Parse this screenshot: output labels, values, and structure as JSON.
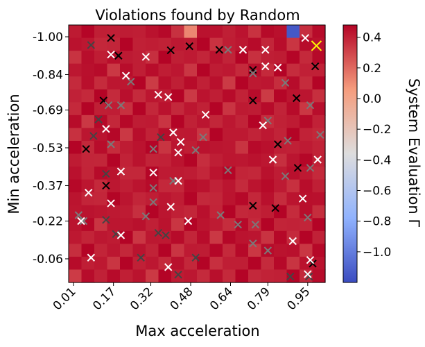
{
  "chart_data": {
    "type": "heatmap",
    "title": "Violations found by Random",
    "xlabel": "Max acceleration",
    "ylabel": "Min acceleration",
    "colorbar_label": "System Evaluation Γ",
    "colormap": "coolwarm",
    "xlim": [
      -0.01,
      1.02
    ],
    "ylim": [
      0.04,
      -1.05
    ],
    "x_ticks": [
      0.01,
      0.17,
      0.32,
      0.48,
      0.64,
      0.79,
      0.95
    ],
    "x_tick_labels": [
      "0.01",
      "0.17",
      "0.32",
      "0.48",
      "0.64",
      "0.79",
      "0.95"
    ],
    "y_ticks": [
      -1.0,
      -0.84,
      -0.69,
      -0.53,
      -0.37,
      -0.22,
      -0.06
    ],
    "y_tick_labels": [
      "-1.00",
      "-0.84",
      "-0.69",
      "-0.53",
      "-0.37",
      "-0.22",
      "-0.06"
    ],
    "colorbar_range": [
      -1.2,
      0.48
    ],
    "colorbar_ticks": [
      -1.0,
      -0.8,
      -0.6,
      -0.4,
      -0.2,
      0.0,
      0.2,
      0.4
    ],
    "colorbar_tick_labels": [
      "−1.0",
      "−0.8",
      "−0.6",
      "−0.4",
      "−0.2",
      "0.0",
      "0.2",
      "0.4"
    ],
    "grid": false,
    "base_value": 0.42,
    "special_cells": [
      {
        "x": 0.48,
        "y": -1.0,
        "value": 0.12
      },
      {
        "x": 0.9,
        "y": -1.0,
        "value": -1.15
      }
    ],
    "markers": {
      "black": [
        [
          0.16,
          -0.995
        ],
        [
          0.19,
          -0.92
        ],
        [
          0.4,
          -0.943
        ],
        [
          0.475,
          -0.96
        ],
        [
          0.595,
          -0.945
        ],
        [
          0.73,
          -0.86
        ],
        [
          0.98,
          -0.875
        ],
        [
          0.13,
          -0.73
        ],
        [
          0.73,
          -0.73
        ],
        [
          0.905,
          -0.74
        ],
        [
          0.06,
          -0.525
        ],
        [
          0.83,
          -0.545
        ],
        [
          0.91,
          -0.445
        ],
        [
          0.14,
          -0.37
        ],
        [
          0.73,
          -0.285
        ],
        [
          0.82,
          -0.275
        ],
        [
          0.97,
          -0.04
        ]
      ],
      "dark_gray": [
        [
          0.08,
          -0.965
        ],
        [
          0.11,
          -0.65
        ],
        [
          0.09,
          -0.58
        ],
        [
          0.36,
          -0.575
        ],
        [
          0.14,
          -0.42
        ],
        [
          0.14,
          -0.225
        ],
        [
          0.18,
          -0.165
        ],
        [
          0.28,
          -0.065
        ],
        [
          0.35,
          -0.17
        ],
        [
          0.38,
          -0.16
        ],
        [
          0.5,
          -0.065
        ],
        [
          0.43,
          0.007
        ],
        [
          0.88,
          0.015
        ],
        [
          0.955,
          0.015
        ]
      ],
      "gray": [
        [
          0.24,
          -0.81
        ],
        [
          0.63,
          -0.945
        ],
        [
          0.15,
          -0.71
        ],
        [
          0.2,
          -0.71
        ],
        [
          0.16,
          -0.545
        ],
        [
          0.33,
          -0.525
        ],
        [
          0.53,
          -0.575
        ],
        [
          0.5,
          -0.52
        ],
        [
          0.63,
          -0.435
        ],
        [
          0.41,
          -0.39
        ],
        [
          0.33,
          -0.36
        ],
        [
          0.33,
          -0.3
        ],
        [
          0.03,
          -0.245
        ],
        [
          0.05,
          -0.22
        ],
        [
          0.3,
          -0.24
        ],
        [
          0.6,
          -0.245
        ],
        [
          0.74,
          -0.205
        ],
        [
          0.67,
          -0.205
        ],
        [
          0.73,
          -0.125
        ],
        [
          0.79,
          -0.095
        ],
        [
          0.86,
          -0.805
        ],
        [
          0.79,
          -0.645
        ],
        [
          0.86,
          -0.41
        ],
        [
          0.87,
          -0.56
        ],
        [
          0.96,
          -0.71
        ],
        [
          1.0,
          -0.585
        ],
        [
          0.96,
          -0.445
        ],
        [
          0.73,
          -0.845
        ],
        [
          0.95,
          -0.235
        ]
      ],
      "white": [
        [
          0.94,
          -0.995
        ],
        [
          0.16,
          -0.925
        ],
        [
          0.3,
          -0.915
        ],
        [
          0.69,
          -0.945
        ],
        [
          0.78,
          -0.945
        ],
        [
          0.78,
          -0.875
        ],
        [
          0.22,
          -0.835
        ],
        [
          0.35,
          -0.755
        ],
        [
          0.39,
          -0.745
        ],
        [
          0.54,
          -0.67
        ],
        [
          0.14,
          -0.61
        ],
        [
          0.41,
          -0.595
        ],
        [
          0.44,
          -0.555
        ],
        [
          0.43,
          -0.51
        ],
        [
          0.2,
          -0.43
        ],
        [
          0.33,
          -0.425
        ],
        [
          0.43,
          -0.39
        ],
        [
          0.77,
          -0.625
        ],
        [
          0.81,
          -0.48
        ],
        [
          0.99,
          -0.48
        ],
        [
          0.07,
          -0.34
        ],
        [
          0.16,
          -0.295
        ],
        [
          0.4,
          -0.28
        ],
        [
          0.04,
          -0.22
        ],
        [
          0.47,
          -0.22
        ],
        [
          0.2,
          -0.16
        ],
        [
          0.93,
          -0.315
        ],
        [
          0.89,
          -0.135
        ],
        [
          0.08,
          -0.065
        ],
        [
          0.39,
          -0.025
        ],
        [
          0.96,
          -0.055
        ],
        [
          0.95,
          0.005
        ],
        [
          0.83,
          -0.87
        ]
      ],
      "yellow": [
        [
          0.985,
          -0.962
        ]
      ]
    }
  }
}
